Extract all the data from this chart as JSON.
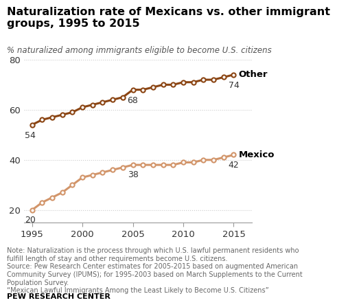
{
  "title": "Naturalization rate of Mexicans vs. other immigrant\ngroups, 1995 to 2015",
  "subtitle": "% naturalized among immigrants eligible to become U.S. citizens",
  "note": "Note: Naturalization is the process through which U.S. lawful permanent residents who\nfulfill length of stay and other requirements become U.S. citizens.\nSource: Pew Research Center estimates for 2005-2015 based on augmented American\nCommunity Survey (IPUMS); for 1995-2003 based on March Supplements to the Current\nPopulation Survey.\n“Mexican Lawful Immigrants Among the Least Likely to Become U.S. Citizens”",
  "pew_label": "PEW RESEARCH CENTER",
  "other_years": [
    1995,
    1996,
    1997,
    1998,
    1999,
    2000,
    2001,
    2002,
    2003,
    2004,
    2005,
    2006,
    2007,
    2008,
    2009,
    2010,
    2011,
    2012,
    2013,
    2014,
    2015
  ],
  "other_values": [
    54,
    56,
    57,
    58,
    59,
    61,
    62,
    63,
    64,
    65,
    68,
    68,
    69,
    70,
    70,
    71,
    71,
    72,
    72,
    73,
    74
  ],
  "mexico_years": [
    1995,
    1996,
    1997,
    1998,
    1999,
    2000,
    2001,
    2002,
    2003,
    2004,
    2005,
    2006,
    2007,
    2008,
    2009,
    2010,
    2011,
    2012,
    2013,
    2014,
    2015
  ],
  "mexico_values": [
    20,
    23,
    25,
    27,
    30,
    33,
    34,
    35,
    36,
    37,
    38,
    38,
    38,
    38,
    38,
    39,
    39,
    40,
    40,
    41,
    42
  ],
  "other_color": "#8B4513",
  "mexico_color": "#D2956A",
  "marker_face_color": "#FFFFFF",
  "ylim": [
    15,
    85
  ],
  "yticks": [
    20,
    40,
    60,
    80
  ],
  "xticks": [
    1995,
    2000,
    2005,
    2010,
    2015
  ],
  "annotation_other_1995": "54",
  "annotation_other_2005": "68",
  "annotation_other_2015": "74",
  "annotation_mexico_1995": "20",
  "annotation_mexico_2005": "38",
  "annotation_mexico_2015": "42",
  "label_other": "Other",
  "label_mexico": "Mexico",
  "background_color": "#FFFFFF",
  "grid_color": "#CCCCCC",
  "note_color": "#666666",
  "title_color": "#000000"
}
